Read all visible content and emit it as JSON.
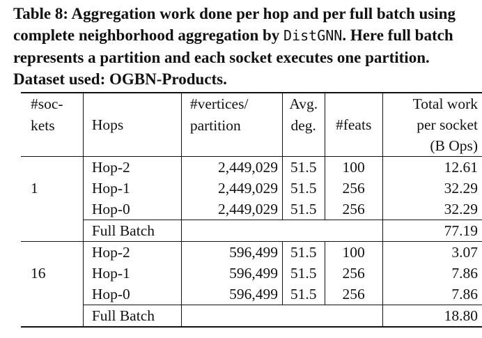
{
  "caption": {
    "part1": "Table 8: Aggregation work done per hop and per full batch using complete neighborhood aggregation by ",
    "code": "DistGNN",
    "part2": ". Here full batch represents a partition and each socket executes one partition. Dataset used: OGBN-Products."
  },
  "header": {
    "sockets_l1": "#soc-",
    "sockets_l2": "kets",
    "hops": "Hops",
    "vertices_l1": "#vertices/",
    "vertices_l2": "partition",
    "avg_l1": "Avg.",
    "avg_l2": "deg.",
    "feats": "#feats",
    "total_l1": "Total work",
    "total_l2": "per socket",
    "total_l3": "(B Ops)"
  },
  "groups": [
    {
      "sockets": "1",
      "rows": [
        {
          "hop": "Hop-2",
          "vertices": "2,449,029",
          "avg": "51.5",
          "feats": "100",
          "total": "12.61"
        },
        {
          "hop": "Hop-1",
          "vertices": "2,449,029",
          "avg": "51.5",
          "feats": "256",
          "total": "32.29"
        },
        {
          "hop": "Hop-0",
          "vertices": "2,449,029",
          "avg": "51.5",
          "feats": "256",
          "total": "32.29"
        }
      ],
      "full_batch_label": "Full Batch",
      "full_batch_total": "77.19"
    },
    {
      "sockets": "16",
      "rows": [
        {
          "hop": "Hop-2",
          "vertices": "596,499",
          "avg": "51.5",
          "feats": "100",
          "total": "3.07"
        },
        {
          "hop": "Hop-1",
          "vertices": "596,499",
          "avg": "51.5",
          "feats": "256",
          "total": "7.86"
        },
        {
          "hop": "Hop-0",
          "vertices": "596,499",
          "avg": "51.5",
          "feats": "256",
          "total": "7.86"
        }
      ],
      "full_batch_label": "Full Batch",
      "full_batch_total": "18.80"
    }
  ]
}
